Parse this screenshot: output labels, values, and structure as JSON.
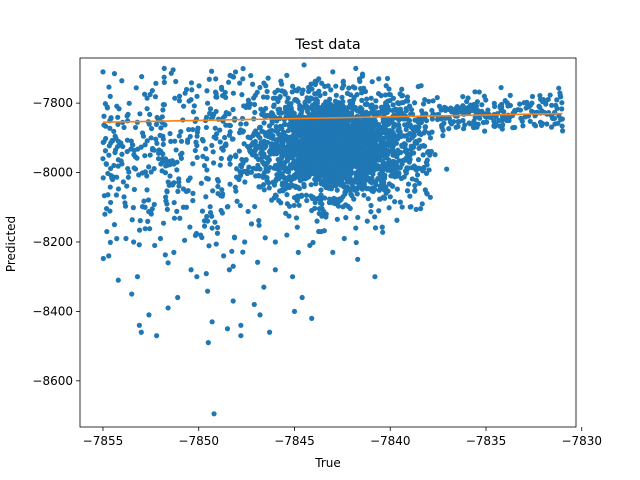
{
  "chart_data": {
    "type": "scatter",
    "title": "Test data",
    "xlabel": "True",
    "ylabel": "Predicted",
    "xlim": [
      -7856.2,
      -7830.3
    ],
    "ylim": [
      -8733,
      -7670
    ],
    "x_ticks": [
      -7855,
      -7850,
      -7845,
      -7840,
      -7835,
      -7830
    ],
    "x_tick_labels": [
      "−7855",
      "−7850",
      "−7845",
      "−7840",
      "−7835",
      "−7830"
    ],
    "y_ticks": [
      -7800,
      -8000,
      -8200,
      -8400,
      -8600
    ],
    "y_tick_labels": [
      "−7800",
      "−8000",
      "−8200",
      "−8400",
      "−8600"
    ],
    "grid": false,
    "legend": "none",
    "colors": {
      "points": "#1f77b4",
      "fit_line": "#ff7f0e"
    },
    "series": [
      {
        "type": "scatter",
        "points": [
          [
            -7855.0,
            -7710
          ],
          [
            -7854.4,
            -7715
          ],
          [
            -7853.9,
            -7870
          ],
          [
            -7853.3,
            -7870
          ],
          [
            -7852.8,
            -7920
          ],
          [
            -7851.8,
            -7700
          ],
          [
            -7851.0,
            -7780
          ],
          [
            -7850.4,
            -7790
          ],
          [
            -7849.6,
            -7870
          ],
          [
            -7848.8,
            -7930
          ],
          [
            -7855.0,
            -7960
          ],
          [
            -7854.9,
            -8120
          ],
          [
            -7854.8,
            -8170
          ],
          [
            -7854.7,
            -8240
          ],
          [
            -7854.4,
            -8150
          ],
          [
            -7853.8,
            -8190
          ],
          [
            -7853.4,
            -8200
          ],
          [
            -7853.2,
            -8300
          ],
          [
            -7852.8,
            -8100
          ],
          [
            -7852.3,
            -8210
          ],
          [
            -7852.0,
            -8190
          ],
          [
            -7851.6,
            -8260
          ],
          [
            -7851.3,
            -8230
          ],
          [
            -7850.8,
            -8100
          ],
          [
            -7850.4,
            -8280
          ],
          [
            -7849.9,
            -8180
          ],
          [
            -7849.3,
            -8160
          ],
          [
            -7848.7,
            -8240
          ],
          [
            -7848.2,
            -8270
          ],
          [
            -7847.6,
            -8200
          ],
          [
            -7854.2,
            -8310
          ],
          [
            -7853.5,
            -8350
          ],
          [
            -7853.1,
            -8440
          ],
          [
            -7853.0,
            -8460
          ],
          [
            -7852.6,
            -8410
          ],
          [
            -7852.2,
            -8470
          ],
          [
            -7851.6,
            -8390
          ],
          [
            -7851.1,
            -8360
          ],
          [
            -7850.1,
            -8300
          ],
          [
            -7849.3,
            -8430
          ],
          [
            -7848.4,
            -8280
          ],
          [
            -7848.2,
            -8370
          ],
          [
            -7847.8,
            -8440
          ],
          [
            -7847.1,
            -8380
          ],
          [
            -7846.6,
            -8330
          ],
          [
            -7846.0,
            -8280
          ],
          [
            -7845.1,
            -8300
          ],
          [
            -7844.6,
            -8360
          ],
          [
            -7841.7,
            -8250
          ],
          [
            -7840.8,
            -8300
          ],
          [
            -7849.5,
            -8490
          ],
          [
            -7848.5,
            -8450
          ],
          [
            -7847.8,
            -8470
          ],
          [
            -7846.8,
            -8410
          ],
          [
            -7846.3,
            -8460
          ],
          [
            -7845.0,
            -8400
          ],
          [
            -7844.1,
            -8420
          ],
          [
            -7849.2,
            -8695
          ],
          [
            -7846.0,
            -8200
          ],
          [
            -7845.4,
            -8180
          ],
          [
            -7844.8,
            -8230
          ],
          [
            -7844.2,
            -8210
          ],
          [
            -7843.6,
            -8170
          ],
          [
            -7843.0,
            -8230
          ],
          [
            -7842.4,
            -8190
          ],
          [
            -7841.8,
            -8160
          ],
          [
            -7841.2,
            -8140
          ],
          [
            -7840.6,
            -8110
          ],
          [
            -7840.2,
            -8050
          ],
          [
            -7839.6,
            -8010
          ],
          [
            -7839.0,
            -7970
          ],
          [
            -7838.5,
            -7930
          ],
          [
            -7837.9,
            -7900
          ],
          [
            -7837.3,
            -7870
          ],
          [
            -7836.8,
            -7860
          ],
          [
            -7836.2,
            -7850
          ],
          [
            -7835.6,
            -7870
          ],
          [
            -7835.0,
            -7840
          ],
          [
            -7834.4,
            -7830
          ],
          [
            -7833.8,
            -7850
          ],
          [
            -7833.2,
            -7820
          ],
          [
            -7832.6,
            -7800
          ],
          [
            -7832.0,
            -7790
          ],
          [
            -7831.4,
            -7860
          ],
          [
            -7831.0,
            -7880
          ],
          [
            -7834.9,
            -7820
          ],
          [
            -7833.5,
            -7870
          ],
          [
            -7836.5,
            -7810
          ],
          [
            -7838.2,
            -7790
          ],
          [
            -7839.4,
            -7760
          ],
          [
            -7840.6,
            -7730
          ],
          [
            -7841.8,
            -7700
          ],
          [
            -7843.0,
            -7710
          ],
          [
            -7844.5,
            -7690
          ],
          [
            -7845.4,
            -7720
          ],
          [
            -7846.5,
            -7750
          ],
          [
            -7847.7,
            -7730
          ],
          [
            -7848.8,
            -7760
          ],
          [
            -7845.8,
            -7820
          ],
          [
            -7845.2,
            -7860
          ],
          [
            -7844.7,
            -7880
          ],
          [
            -7844.3,
            -7930
          ],
          [
            -7843.9,
            -7960
          ],
          [
            -7843.5,
            -7900
          ],
          [
            -7843.1,
            -7870
          ],
          [
            -7842.7,
            -7950
          ],
          [
            -7842.3,
            -7990
          ],
          [
            -7841.9,
            -7920
          ],
          [
            -7841.5,
            -7880
          ],
          [
            -7841.1,
            -7960
          ],
          [
            -7840.7,
            -7900
          ],
          [
            -7840.3,
            -7860
          ],
          [
            -7839.9,
            -7880
          ],
          [
            -7846.3,
            -7940
          ],
          [
            -7846.8,
            -7990
          ],
          [
            -7847.3,
            -7900
          ],
          [
            -7847.9,
            -8020
          ],
          [
            -7848.4,
            -7960
          ],
          [
            -7849.0,
            -8040
          ],
          [
            -7849.7,
            -7980
          ],
          [
            -7850.3,
            -8060
          ],
          [
            -7850.9,
            -7910
          ],
          [
            -7851.5,
            -8010
          ],
          [
            -7852.1,
            -7960
          ],
          [
            -7852.7,
            -8050
          ],
          [
            -7853.3,
            -7990
          ],
          [
            -7853.9,
            -8070
          ],
          [
            -7854.5,
            -8020
          ]
        ]
      },
      {
        "type": "line",
        "name": "",
        "points": [
          [
            -7855.0,
            -7855
          ],
          [
            -7831.0,
            -7830
          ]
        ]
      }
    ]
  }
}
